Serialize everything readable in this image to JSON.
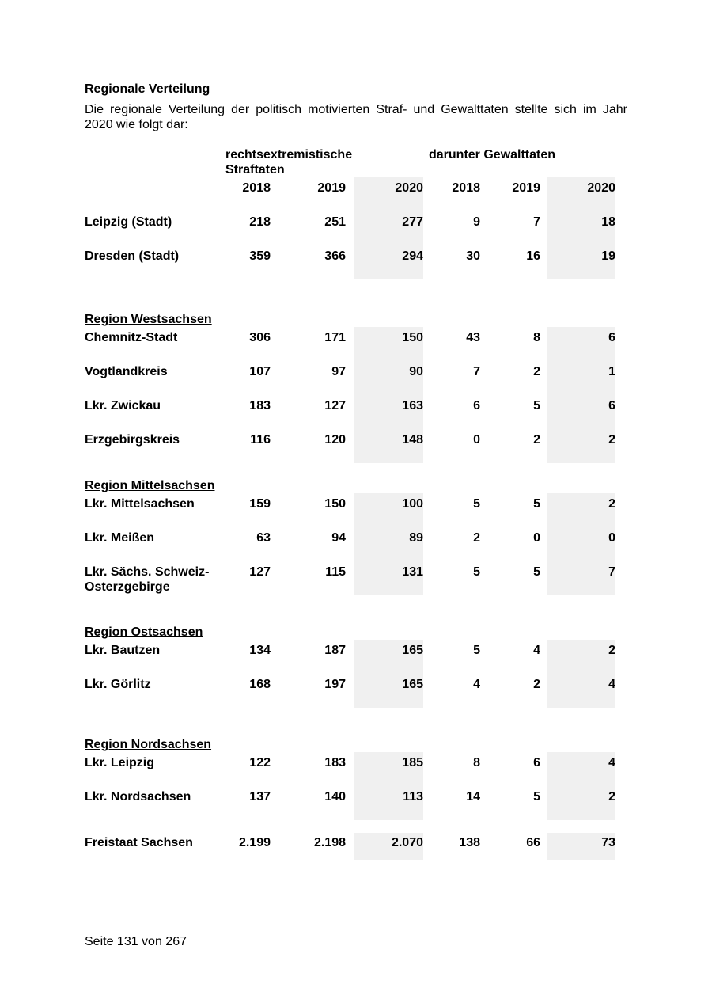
{
  "doc": {
    "title": "Regionale Verteilung",
    "intro_lines": [
      "Die regionale Verteilung der politisch motivierten Straf- und Gewalttaten stellte sich im Jahr",
      "2020 wie folgt dar:"
    ],
    "footer": "Seite 131 von 267"
  },
  "table": {
    "group_headers": [
      "rechtsextremistische Straftaten",
      "darunter Gewalttaten"
    ],
    "year_headers": [
      "2018",
      "2019",
      "2020",
      "2018",
      "2019",
      "2020"
    ],
    "highlight_color": "#f0f0f0",
    "sections": [
      {
        "heading": "",
        "rows": [
          {
            "label": "Leipzig (Stadt)",
            "values": [
              "218",
              "251",
              "277",
              "9",
              "7",
              "18"
            ]
          },
          {
            "label": "Dresden (Stadt)",
            "values": [
              "359",
              "366",
              "294",
              "30",
              "16",
              "19"
            ]
          }
        ]
      },
      {
        "heading": "Region Westsachsen",
        "rows": [
          {
            "label": "Chemnitz-Stadt",
            "values": [
              "306",
              "171",
              "150",
              "43",
              "8",
              "6"
            ]
          },
          {
            "label": "Vogtlandkreis",
            "values": [
              "107",
              "97",
              "90",
              "7",
              "2",
              "1"
            ]
          },
          {
            "label": "Lkr. Zwickau",
            "values": [
              "183",
              "127",
              "163",
              "6",
              "5",
              "6"
            ]
          },
          {
            "label": "Erzgebirgskreis",
            "values": [
              "116",
              "120",
              "148",
              "0",
              "2",
              "2"
            ]
          }
        ]
      },
      {
        "heading": "Region Mittelsachsen",
        "rows": [
          {
            "label": "Lkr. Mittelsachsen",
            "values": [
              "159",
              "150",
              "100",
              "5",
              "5",
              "2"
            ]
          },
          {
            "label": "Lkr. Meißen",
            "values": [
              "63",
              "94",
              "89",
              "2",
              "0",
              "0"
            ]
          },
          {
            "label": "Lkr. Sächs. Schweiz-Osterzgebirge",
            "values": [
              "127",
              "115",
              "131",
              "5",
              "5",
              "7"
            ]
          }
        ]
      },
      {
        "heading": "Region Ostsachsen",
        "rows": [
          {
            "label": "Lkr. Bautzen",
            "values": [
              "134",
              "187",
              "165",
              "5",
              "4",
              "2"
            ]
          },
          {
            "label": "Lkr. Görlitz",
            "values": [
              "168",
              "197",
              "165",
              "4",
              "2",
              "4"
            ]
          }
        ]
      },
      {
        "heading": "Region Nordsachsen",
        "rows": [
          {
            "label": "Lkr. Leipzig",
            "values": [
              "122",
              "183",
              "185",
              "8",
              "6",
              "4"
            ]
          },
          {
            "label": "Lkr. Nordsachsen",
            "values": [
              "137",
              "140",
              "113",
              "14",
              "5",
              "2"
            ]
          }
        ]
      }
    ],
    "total_row": {
      "label": "Freistaat Sachsen",
      "values": [
        "2.199",
        "2.198",
        "2.070",
        "138",
        "66",
        "73"
      ]
    }
  }
}
